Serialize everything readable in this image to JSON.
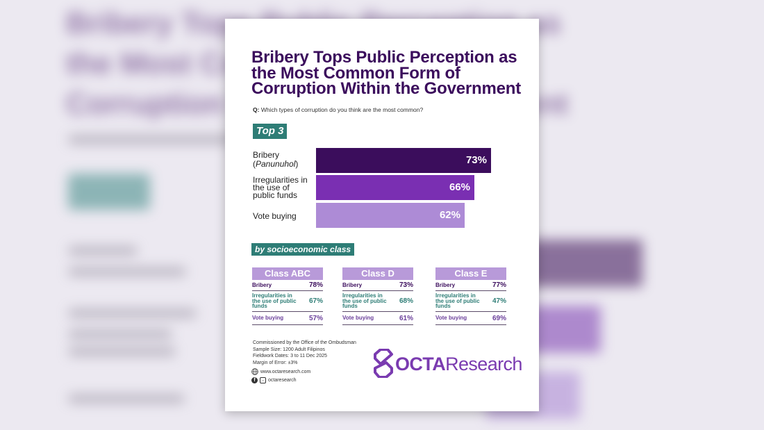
{
  "title_line1": "Bribery Tops Public Perception as",
  "title_line2": "the Most Common Form of",
  "title_line3": "Corruption Within the Government",
  "question_prefix": "Q:",
  "question": "Which types of corruption do you think are the most common?",
  "top_tag": "Top 3",
  "class_tag": "by socioeconomic class",
  "colors": {
    "bar1": "#3b0d5c",
    "bar2": "#7a2fb2",
    "bar3": "#ad8bd6",
    "teal": "#2e7d76",
    "class_header": "#b89ad9"
  },
  "chart_data": [
    {
      "type": "bar",
      "orientation": "horizontal",
      "categories": [
        "Bribery (Panunuhol)",
        "Irregularities in the use of public funds",
        "Vote buying"
      ],
      "values": [
        73,
        66,
        62
      ],
      "value_labels": [
        "73%",
        "66%",
        "62%"
      ],
      "xlim": [
        0,
        80
      ],
      "grid": false
    },
    {
      "type": "table",
      "columns": [
        "Class ABC",
        "Class D",
        "Class E"
      ],
      "rows": [
        {
          "label": "Bribery",
          "values": [
            "78%",
            "73%",
            "77%"
          ]
        },
        {
          "label": "Irregularities in the use of public funds",
          "values": [
            "67%",
            "68%",
            "47%"
          ]
        },
        {
          "label": "Vote buying",
          "values": [
            "57%",
            "61%",
            "69%"
          ]
        }
      ]
    }
  ],
  "bar_labels": {
    "b1_line1": "Bribery",
    "b1_line2_pre": "(",
    "b1_line2_it": "Panunuhol",
    "b1_line2_post": ")",
    "b2_line1": "Irregularities in",
    "b2_line2": "the use of",
    "b2_line3": "public funds",
    "b3_line1": "Vote buying"
  },
  "class_labels": {
    "row1": "Bribery",
    "row2_l1": "Irregularities in",
    "row2_l2": "the use of public",
    "row2_l3": "funds",
    "row3": "Vote buying"
  },
  "footer": {
    "line1": "Commissioned by the Office of the Ombudsman",
    "line2": "Sample Size: 1200 Adult Filipinos",
    "line3": "Fieldwork Dates: 3 to 11 Dec 2025",
    "line4": "Margin of Error: ±3%",
    "website": "www.octaresearch.com",
    "social": "octaresearch"
  },
  "logo": {
    "part1": "OCTA",
    "part2": "Research"
  },
  "icons": [
    "globe-icon",
    "facebook-icon",
    "instagram-icon",
    "octa-logo-icon"
  ]
}
